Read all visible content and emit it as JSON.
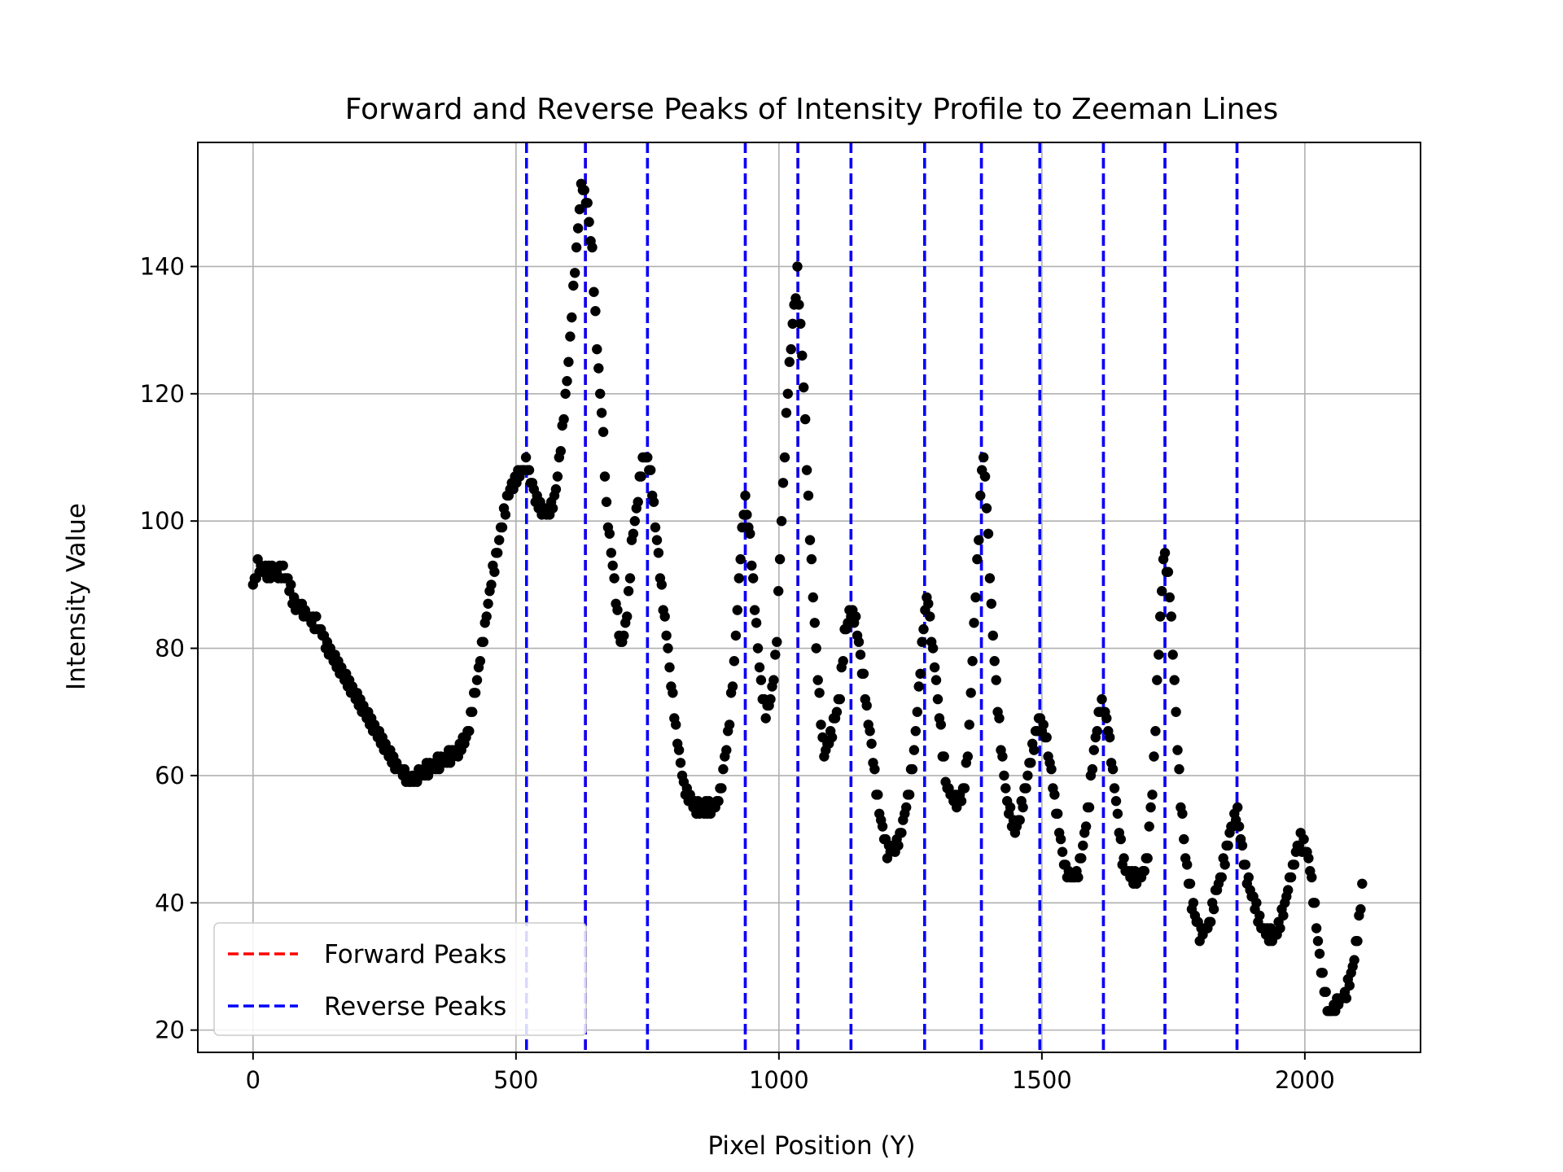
{
  "chart_data": {
    "type": "scatter",
    "title": "Forward and Reverse Peaks of Intensity Profile to Zeeman Lines",
    "xlabel": "Pixel Position (Y)",
    "ylabel": "Intensity Value",
    "xlim": [
      -105,
      2220
    ],
    "ylim": [
      16.5,
      159.5
    ],
    "xticks": [
      0,
      500,
      1000,
      1500,
      2000
    ],
    "yticks": [
      20,
      40,
      60,
      80,
      100,
      120,
      140
    ],
    "grid": true,
    "legend_position": "lower-left",
    "colors": {
      "points": "#000000",
      "forward": "#ff0000",
      "reverse": "#0000ff",
      "grid": "#b0b0b0"
    },
    "series": [
      {
        "name": "Forward Peaks",
        "style": "dashed-vline",
        "x": [
          520,
          632,
          750,
          936,
          1036,
          1137,
          1277,
          1385,
          1496,
          1617,
          1734,
          1871
        ]
      },
      {
        "name": "Reverse Peaks",
        "style": "dashed-vline",
        "x": [
          520,
          632,
          750,
          936,
          1036,
          1137,
          1277,
          1385,
          1496,
          1617,
          1734,
          1871
        ]
      }
    ],
    "intensity_profile_keypoints": [
      [
        0,
        90
      ],
      [
        10,
        93
      ],
      [
        30,
        92
      ],
      [
        60,
        92
      ],
      [
        80,
        87
      ],
      [
        120,
        84
      ],
      [
        150,
        79
      ],
      [
        200,
        72
      ],
      [
        240,
        66
      ],
      [
        270,
        62
      ],
      [
        300,
        59
      ],
      [
        330,
        61
      ],
      [
        360,
        62
      ],
      [
        390,
        64
      ],
      [
        410,
        67
      ],
      [
        430,
        77
      ],
      [
        450,
        89
      ],
      [
        470,
        98
      ],
      [
        485,
        104
      ],
      [
        500,
        107
      ],
      [
        520,
        109
      ],
      [
        540,
        103
      ],
      [
        560,
        101
      ],
      [
        575,
        104
      ],
      [
        585,
        112
      ],
      [
        600,
        125
      ],
      [
        612,
        140
      ],
      [
        625,
        153
      ],
      [
        635,
        150
      ],
      [
        645,
        142
      ],
      [
        655,
        126
      ],
      [
        665,
        115
      ],
      [
        672,
        102
      ],
      [
        685,
        92
      ],
      [
        700,
        80
      ],
      [
        712,
        86
      ],
      [
        720,
        96
      ],
      [
        735,
        106
      ],
      [
        745,
        111
      ],
      [
        755,
        108
      ],
      [
        770,
        95
      ],
      [
        785,
        83
      ],
      [
        800,
        70
      ],
      [
        820,
        58
      ],
      [
        840,
        55
      ],
      [
        880,
        55
      ],
      [
        890,
        58
      ],
      [
        905,
        68
      ],
      [
        915,
        78
      ],
      [
        925,
        92
      ],
      [
        935,
        104
      ],
      [
        945,
        97
      ],
      [
        955,
        86
      ],
      [
        965,
        75
      ],
      [
        975,
        70
      ],
      [
        985,
        72
      ],
      [
        995,
        80
      ],
      [
        1005,
        100
      ],
      [
        1015,
        118
      ],
      [
        1025,
        130
      ],
      [
        1035,
        139
      ],
      [
        1045,
        125
      ],
      [
        1055,
        105
      ],
      [
        1065,
        88
      ],
      [
        1075,
        74
      ],
      [
        1085,
        63
      ],
      [
        1100,
        67
      ],
      [
        1115,
        72
      ],
      [
        1125,
        82
      ],
      [
        1135,
        86
      ],
      [
        1145,
        85
      ],
      [
        1155,
        79
      ],
      [
        1165,
        72
      ],
      [
        1175,
        65
      ],
      [
        1190,
        55
      ],
      [
        1205,
        48
      ],
      [
        1225,
        49
      ],
      [
        1240,
        54
      ],
      [
        1255,
        62
      ],
      [
        1265,
        72
      ],
      [
        1275,
        84
      ],
      [
        1282,
        89
      ],
      [
        1290,
        82
      ],
      [
        1300,
        74
      ],
      [
        1310,
        65
      ],
      [
        1320,
        58
      ],
      [
        1335,
        56
      ],
      [
        1350,
        57
      ],
      [
        1360,
        64
      ],
      [
        1370,
        82
      ],
      [
        1380,
        98
      ],
      [
        1388,
        112
      ],
      [
        1395,
        103
      ],
      [
        1405,
        85
      ],
      [
        1415,
        72
      ],
      [
        1425,
        62
      ],
      [
        1435,
        55
      ],
      [
        1450,
        51
      ],
      [
        1465,
        56
      ],
      [
        1480,
        63
      ],
      [
        1495,
        69
      ],
      [
        1505,
        67
      ],
      [
        1515,
        62
      ],
      [
        1525,
        56
      ],
      [
        1535,
        50
      ],
      [
        1545,
        45
      ],
      [
        1560,
        44
      ],
      [
        1570,
        45
      ],
      [
        1580,
        50
      ],
      [
        1590,
        56
      ],
      [
        1600,
        65
      ],
      [
        1612,
        71
      ],
      [
        1622,
        70
      ],
      [
        1632,
        63
      ],
      [
        1642,
        55
      ],
      [
        1655,
        46
      ],
      [
        1670,
        44
      ],
      [
        1690,
        44
      ],
      [
        1700,
        47
      ],
      [
        1712,
        60
      ],
      [
        1722,
        80
      ],
      [
        1732,
        96
      ],
      [
        1742,
        90
      ],
      [
        1752,
        75
      ],
      [
        1762,
        58
      ],
      [
        1772,
        48
      ],
      [
        1785,
        40
      ],
      [
        1800,
        35
      ],
      [
        1815,
        36
      ],
      [
        1830,
        41
      ],
      [
        1845,
        46
      ],
      [
        1860,
        52
      ],
      [
        1872,
        54
      ],
      [
        1885,
        46
      ],
      [
        1900,
        41
      ],
      [
        1915,
        37
      ],
      [
        1930,
        35
      ],
      [
        1945,
        35
      ],
      [
        1960,
        39
      ],
      [
        1975,
        45
      ],
      [
        1990,
        50
      ],
      [
        2005,
        48
      ],
      [
        2015,
        42
      ],
      [
        2030,
        30
      ],
      [
        2045,
        23
      ],
      [
        2075,
        25
      ],
      [
        2090,
        29
      ],
      [
        2102,
        36
      ],
      [
        2110,
        44
      ]
    ]
  }
}
